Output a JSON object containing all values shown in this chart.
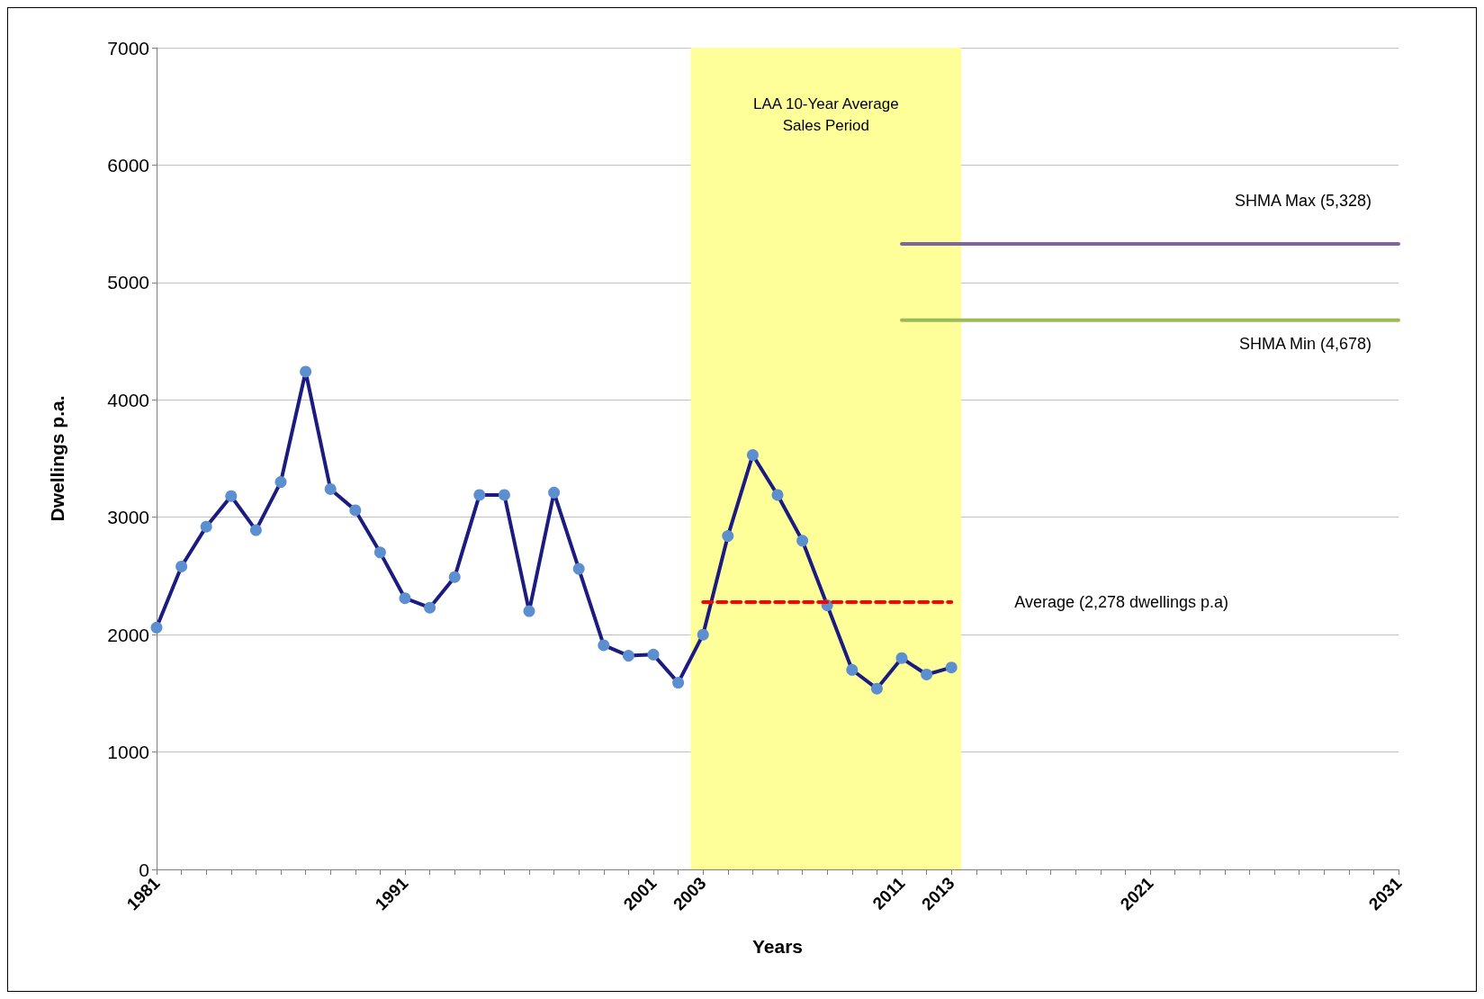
{
  "chart_data": {
    "type": "line",
    "xlabel": "Years",
    "ylabel": "Dwellings p.a.",
    "xlim": [
      1981,
      2031
    ],
    "ylim": [
      0,
      7000
    ],
    "yticks": [
      0,
      1000,
      2000,
      3000,
      4000,
      5000,
      6000,
      7000
    ],
    "xticks": [
      1981,
      {
        "value": 1982,
        "label": null
      },
      {
        "value": 1983,
        "label": null
      },
      {
        "value": 1984,
        "label": null
      },
      {
        "value": 1985,
        "label": null
      },
      {
        "value": 1986,
        "label": null
      },
      {
        "value": 1987,
        "label": null
      },
      {
        "value": 1988,
        "label": null
      },
      {
        "value": 1989,
        "label": null
      },
      {
        "value": 1990,
        "label": null
      },
      1991,
      {
        "value": 1992,
        "label": null
      },
      {
        "value": 1993,
        "label": null
      },
      {
        "value": 1994,
        "label": null
      },
      {
        "value": 1995,
        "label": null
      },
      {
        "value": 1996,
        "label": null
      },
      {
        "value": 1997,
        "label": null
      },
      {
        "value": 1998,
        "label": null
      },
      {
        "value": 1999,
        "label": null
      },
      {
        "value": 2000,
        "label": null
      },
      2001,
      {
        "value": 2002,
        "label": null
      },
      2003,
      {
        "value": 2004,
        "label": null
      },
      {
        "value": 2005,
        "label": null
      },
      {
        "value": 2006,
        "label": null
      },
      {
        "value": 2007,
        "label": null
      },
      {
        "value": 2008,
        "label": null
      },
      {
        "value": 2009,
        "label": null
      },
      {
        "value": 2010,
        "label": null
      },
      2011,
      {
        "value": 2012,
        "label": null
      },
      2013,
      {
        "value": 2014,
        "label": null
      },
      {
        "value": 2015,
        "label": null
      },
      {
        "value": 2016,
        "label": null
      },
      {
        "value": 2017,
        "label": null
      },
      {
        "value": 2018,
        "label": null
      },
      {
        "value": 2019,
        "label": null
      },
      {
        "value": 2020,
        "label": null
      },
      2021,
      {
        "value": 2022,
        "label": null
      },
      {
        "value": 2023,
        "label": null
      },
      {
        "value": 2024,
        "label": null
      },
      {
        "value": 2025,
        "label": null
      },
      {
        "value": 2026,
        "label": null
      },
      {
        "value": 2027,
        "label": null
      },
      {
        "value": 2028,
        "label": null
      },
      {
        "value": 2029,
        "label": null
      },
      {
        "value": 2030,
        "label": null
      },
      2031
    ],
    "grid": "y",
    "series": [
      {
        "color": "#5b8fd0",
        "marker": "circle",
        "x": [
          1981,
          1982,
          1983,
          1984,
          1985,
          1986,
          1987,
          1988,
          1989,
          1990,
          1991,
          1992,
          1993,
          1994,
          1995,
          1996,
          1997,
          1998,
          1999,
          2000,
          2001,
          2002,
          2003,
          2004,
          2005,
          2006,
          2007,
          2008,
          2009,
          2010,
          2011,
          2012,
          2013
        ],
        "values": [
          2060,
          2580,
          2920,
          3180,
          2890,
          3300,
          4240,
          3240,
          3060,
          2700,
          2310,
          2230,
          2490,
          3190,
          3190,
          2200,
          3210,
          2560,
          1910,
          1820,
          1830,
          1590,
          2000,
          2840,
          3530,
          3190,
          2800,
          2250,
          1700,
          1540,
          1800,
          1660,
          1720
        ]
      },
      {
        "color": "#ff0000",
        "marker": "none",
        "line_style": "dashed",
        "x": [
          2003,
          2013
        ],
        "values": [
          2278,
          2278
        ]
      },
      {
        "color": "#8064a2",
        "marker": "none",
        "x": [
          2011,
          2031
        ],
        "values": [
          5328,
          5328
        ]
      },
      {
        "color": "#9bbb59",
        "marker": "none",
        "x": [
          2011,
          2031
        ],
        "values": [
          4678,
          4678
        ]
      }
    ],
    "bands": [
      {
        "axis": "x",
        "from": 2002.5,
        "to": 2013.4,
        "label": "LAA 10-Year Average\nSales Period",
        "color": "#ffff99"
      }
    ],
    "annotations": [
      "Average (2,278 dwellings p.a)",
      "SHMA Max (5,328)",
      "SHMA Min (4,678)"
    ]
  }
}
